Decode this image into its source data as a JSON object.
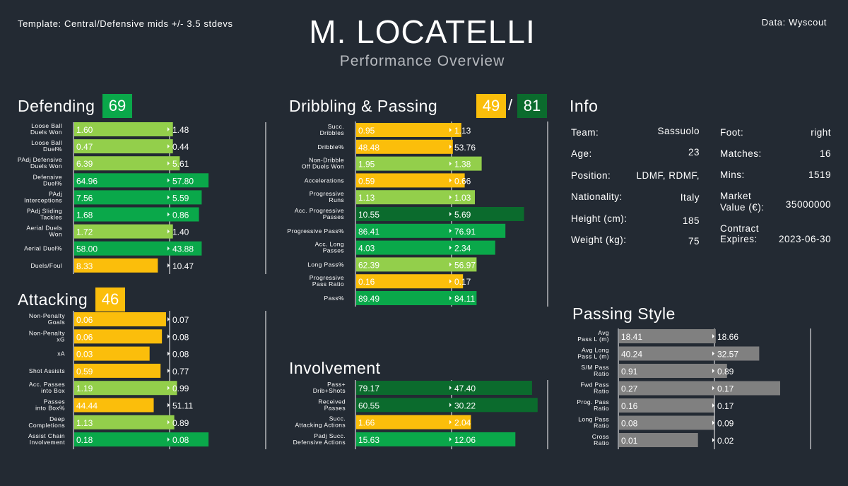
{
  "header": {
    "template": "Template: Central/Defensive  mids +/- 3.5 stdevs",
    "data_source": "Data: Wyscout",
    "player_name": "M. LOCATELLI",
    "subtitle": "Performance Overview"
  },
  "sections": {
    "defending": {
      "title": "Defending",
      "score": "69"
    },
    "attacking": {
      "title": "Attacking",
      "score": "46"
    },
    "dribbling": {
      "title": "Dribbling & Passing",
      "score_a": "49",
      "slash": "/",
      "score_b": "81"
    },
    "involvement": {
      "title": "Involvement"
    },
    "info": {
      "title": "Info"
    },
    "passing_style": {
      "title": "Passing Style"
    }
  },
  "info": {
    "team_label": "Team:",
    "team": "Sassuolo",
    "age_label": "Age:",
    "age": "23",
    "position_label": "Position:",
    "position": "LDMF, RDMF,",
    "nationality_label": "Nationality:",
    "nationality": "Italy",
    "height_label": "Height (cm):",
    "height": "185",
    "weight_label": "Weight (kg):",
    "weight": "75",
    "foot_label": "Foot:",
    "foot": "right",
    "matches_label": "Matches:",
    "matches": "16",
    "mins_label": "Mins:",
    "mins": "1519",
    "market_label_1": "Market",
    "market_label_2": "Value (€):",
    "market_value": "35000000",
    "contract_label_1": "Contract",
    "contract_label_2": "Expires:",
    "contract": "2023-06-30"
  },
  "colors": {
    "background": "#232a33",
    "yellow": "#fbbe0b",
    "light_green": "#93cf4b",
    "green": "#0aa84a",
    "dark_green": "#0b6b2d",
    "grey": "#808080"
  },
  "chart_data": [
    {
      "id": "defending",
      "type": "bar",
      "categories": [
        [
          "Loose Ball",
          "Duels Won"
        ],
        [
          "Loose Ball",
          "Duel%"
        ],
        [
          "PAdj Defensive",
          "Duels Won"
        ],
        [
          "Defensive",
          "Duel%"
        ],
        [
          "PAdj",
          "Interceptions"
        ],
        [
          "PAdj Sliding",
          "Tackles"
        ],
        [
          "Aerial Duels",
          "Won"
        ],
        [
          "Aerial Duel%"
        ],
        [
          "Duels/Foul"
        ]
      ],
      "values": [
        "1.60",
        "0.47",
        "6.39",
        "64.96",
        "7.56",
        "1.68",
        "1.72",
        "58.00",
        "8.33"
      ],
      "averages": [
        "1.48",
        "0.44",
        "5.61",
        "57.80",
        "5.59",
        "0.86",
        "1.40",
        "43.88",
        "10.47"
      ],
      "bar_fraction": [
        0.72,
        0.72,
        0.77,
        0.98,
        0.93,
        0.91,
        0.72,
        0.93,
        0.61
      ],
      "bar_color": [
        "light_green",
        "light_green",
        "light_green",
        "green",
        "green",
        "green",
        "light_green",
        "green",
        "yellow"
      ]
    },
    {
      "id": "attacking",
      "type": "bar",
      "categories": [
        [
          "Non-Penalty",
          "Goals"
        ],
        [
          "Non-Penalty",
          "xG"
        ],
        [
          "xA"
        ],
        [
          "Shot Assists"
        ],
        [
          "Acc. Passes",
          "into Box"
        ],
        [
          "Passes",
          "into Box%"
        ],
        [
          "Deep",
          "Completions"
        ],
        [
          "Assist Chain",
          "Involvement"
        ]
      ],
      "values": [
        "0.06",
        "0.06",
        "0.03",
        "0.59",
        "1.19",
        "44.44",
        "1.13",
        "0.18"
      ],
      "averages": [
        "0.07",
        "0.08",
        "0.08",
        "0.77",
        "0.99",
        "51.11",
        "0.89",
        "0.08"
      ],
      "bar_fraction": [
        0.67,
        0.64,
        0.55,
        0.63,
        0.75,
        0.58,
        0.73,
        0.98
      ],
      "bar_color": [
        "yellow",
        "yellow",
        "yellow",
        "yellow",
        "light_green",
        "yellow",
        "light_green",
        "green"
      ]
    },
    {
      "id": "dribbling_passing",
      "type": "bar",
      "categories": [
        [
          "Succ.",
          "Dribbles"
        ],
        [
          "Dribble%"
        ],
        [
          "Non-Dribble",
          "Off Duels Won"
        ],
        [
          "Accelerations"
        ],
        [
          "Progressive",
          "Runs"
        ],
        [
          "Acc. Progressive",
          "Passes"
        ],
        [
          "Progressive Pass%"
        ],
        [
          "Acc. Long",
          "Passes"
        ],
        [
          "Long Pass%"
        ],
        [
          "Progressive",
          "Pass Ratio"
        ],
        [
          "Pass%"
        ]
      ],
      "values": [
        "0.95",
        "48.48",
        "1.95",
        "0.59",
        "1.13",
        "10.55",
        "86.41",
        "4.03",
        "62.39",
        "0.16",
        "89.49"
      ],
      "averages": [
        "1.13",
        "53.76",
        "1.38",
        "0.66",
        "1.03",
        "5.69",
        "76.91",
        "2.34",
        "56.97",
        "0.17",
        "84.11"
      ],
      "bar_fraction": [
        0.62,
        0.57,
        0.74,
        0.64,
        0.7,
        0.99,
        0.88,
        0.82,
        0.71,
        0.63,
        0.71
      ],
      "bar_color": [
        "yellow",
        "yellow",
        "light_green",
        "yellow",
        "light_green",
        "dark_green",
        "green",
        "green",
        "light_green",
        "yellow",
        "green"
      ]
    },
    {
      "id": "involvement",
      "type": "bar",
      "categories": [
        [
          "Pass+",
          "Drib+Shots"
        ],
        [
          "Received",
          "Passes"
        ],
        [
          "Succ.",
          "Attacking Actions"
        ],
        [
          "Padj Succ.",
          "Defensive Actions"
        ]
      ],
      "values": [
        "79.17",
        "60.55",
        "1.66",
        "15.63"
      ],
      "averages": [
        "47.40",
        "30.22",
        "2.04",
        "12.06"
      ],
      "bar_fraction": [
        0.95,
        0.98,
        0.62,
        0.86
      ],
      "bar_color": [
        "dark_green",
        "dark_green",
        "yellow",
        "green"
      ]
    },
    {
      "id": "passing_style",
      "type": "bar",
      "categories": [
        [
          "Avg",
          "Pass L (m)"
        ],
        [
          "Avg Long",
          "Pass L (m)"
        ],
        [
          "S/M Pass",
          "Ratio"
        ],
        [
          "Fwd Pass",
          "Ratio"
        ],
        [
          "Prog. Pass",
          "Ratio"
        ],
        [
          "Long Pass",
          "Ratio"
        ],
        [
          "Cross",
          "Ratio"
        ]
      ],
      "values": [
        "18.41",
        "40.24",
        "0.91",
        "0.27",
        "0.16",
        "0.08",
        "0.01"
      ],
      "averages": [
        "18.66",
        "32.57",
        "0.89",
        "0.17",
        "0.17",
        "0.09",
        "0.02"
      ],
      "bar_fraction": [
        0.6,
        0.87,
        0.67,
        1.0,
        0.59,
        0.59,
        0.49
      ],
      "bar_color": [
        "grey",
        "grey",
        "grey",
        "grey",
        "grey",
        "grey",
        "grey"
      ]
    }
  ]
}
